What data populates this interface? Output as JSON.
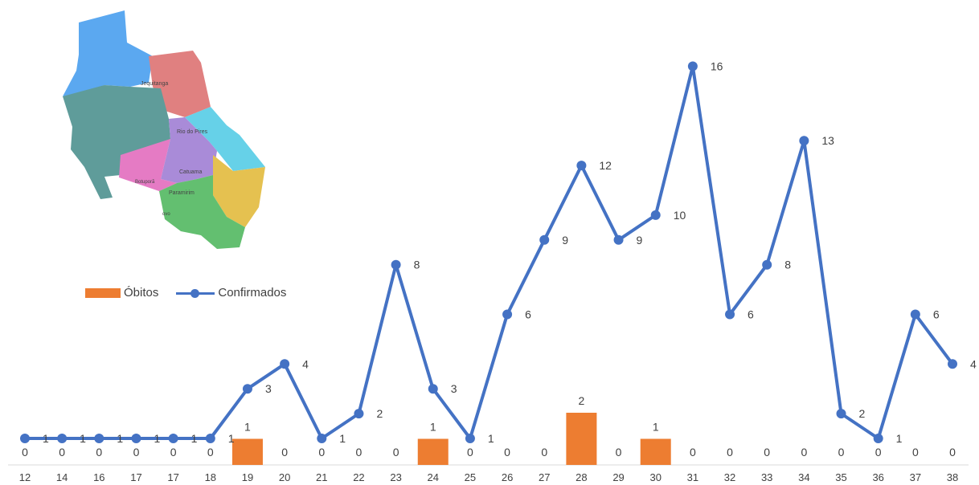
{
  "chart_data": {
    "type": "bar+line",
    "categories": [
      "12",
      "14",
      "16",
      "17",
      "17",
      "18",
      "19",
      "20",
      "21",
      "22",
      "23",
      "24",
      "25",
      "26",
      "27",
      "28",
      "29",
      "30",
      "31",
      "32",
      "33",
      "34",
      "35",
      "36",
      "37",
      "38"
    ],
    "series": [
      {
        "name": "Óbitos",
        "type": "bar",
        "color": "#ED7D31",
        "values": [
          0,
          0,
          0,
          0,
          0,
          0,
          1,
          0,
          0,
          0,
          0,
          1,
          0,
          0,
          0,
          2,
          0,
          1,
          0,
          0,
          0,
          0,
          0,
          0,
          0,
          0
        ]
      },
      {
        "name": "Confirmados",
        "type": "line",
        "color": "#4472C4",
        "values": [
          1,
          1,
          1,
          1,
          1,
          1,
          3,
          4,
          1,
          2,
          8,
          3,
          1,
          6,
          9,
          12,
          9,
          10,
          16,
          6,
          8,
          13,
          2,
          1,
          6,
          4
        ]
      }
    ],
    "legend": "middle-left",
    "grid": false
  },
  "map": {
    "colors": {
      "blue": "#5BA8F0",
      "red": "#E08080",
      "teal": "#5F9C9A",
      "cyan": "#66D1E8",
      "purple": "#A98BD8",
      "pink": "#E57BC4",
      "yellow": "#E5C150",
      "green": "#63BF70"
    },
    "labels": {
      "jequitanga": "Jequitanga",
      "rio": "Rio do Pires",
      "catuama": "Catuama",
      "bonpora": "Botuporã",
      "paramirim": "Paramirim",
      "novo": "ovo"
    }
  }
}
